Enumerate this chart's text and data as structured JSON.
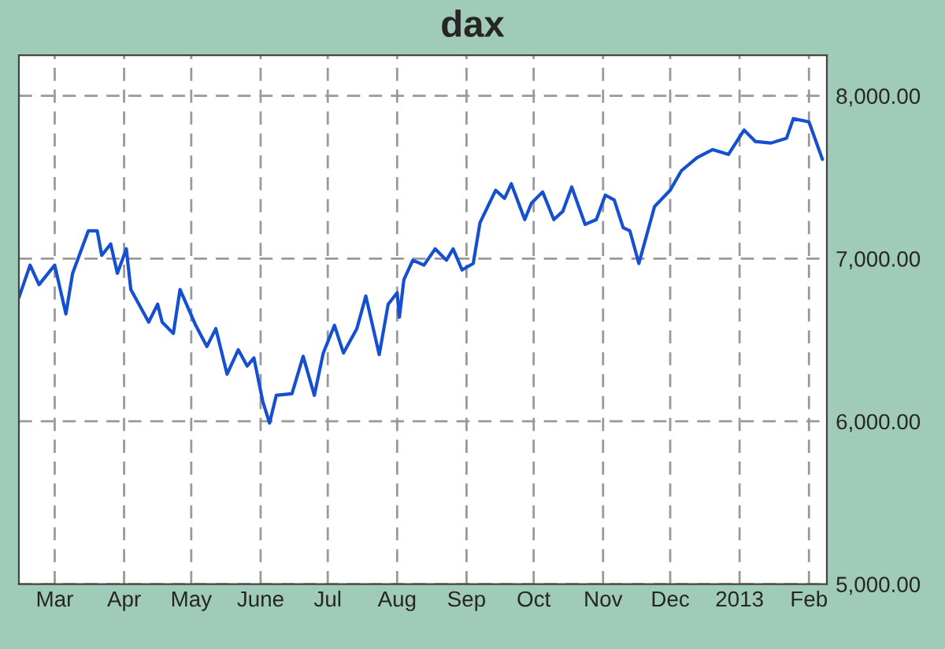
{
  "chart_data": {
    "type": "line",
    "title": "dax",
    "x": [
      "2012-02-14",
      "2012-02-19",
      "2012-02-23",
      "2012-03-01",
      "2012-03-06",
      "2012-03-09",
      "2012-03-16",
      "2012-03-20",
      "2012-03-22",
      "2012-03-26",
      "2012-03-29",
      "2012-04-02",
      "2012-04-04",
      "2012-04-12",
      "2012-04-16",
      "2012-04-18",
      "2012-04-23",
      "2012-04-26",
      "2012-05-03",
      "2012-05-08",
      "2012-05-12",
      "2012-05-17",
      "2012-05-22",
      "2012-05-26",
      "2012-05-29",
      "2012-06-02",
      "2012-06-05",
      "2012-06-08",
      "2012-06-15",
      "2012-06-20",
      "2012-06-25",
      "2012-06-29",
      "2012-07-04",
      "2012-07-08",
      "2012-07-14",
      "2012-07-18",
      "2012-07-24",
      "2012-07-28",
      "2012-08-01",
      "2012-08-02",
      "2012-08-04",
      "2012-08-08",
      "2012-08-13",
      "2012-08-18",
      "2012-08-23",
      "2012-08-26",
      "2012-08-30",
      "2012-09-04",
      "2012-09-07",
      "2012-09-14",
      "2012-09-18",
      "2012-09-21",
      "2012-09-27",
      "2012-09-30",
      "2012-10-05",
      "2012-10-10",
      "2012-10-14",
      "2012-10-18",
      "2012-10-24",
      "2012-10-29",
      "2012-11-02",
      "2012-11-06",
      "2012-11-10",
      "2012-11-13",
      "2012-11-17",
      "2012-11-24",
      "2012-12-01",
      "2012-12-06",
      "2012-12-13",
      "2012-12-20",
      "2012-12-27",
      "2013-01-03",
      "2013-01-08",
      "2013-01-15",
      "2013-01-22",
      "2013-01-25",
      "2013-02-01",
      "2013-02-07"
    ],
    "series": [
      {
        "color": "#1450d0",
        "values": [
          6760,
          6960,
          6840,
          6960,
          6660,
          6910,
          7170,
          7170,
          7020,
          7090,
          6910,
          7060,
          6810,
          6610,
          6720,
          6610,
          6540,
          6810,
          6590,
          6460,
          6570,
          6290,
          6440,
          6340,
          6390,
          6120,
          5990,
          6160,
          6170,
          6400,
          6160,
          6420,
          6590,
          6420,
          6570,
          6770,
          6410,
          6720,
          6790,
          6640,
          6870,
          6990,
          6960,
          7060,
          6990,
          7060,
          6930,
          6970,
          7220,
          7420,
          7370,
          7460,
          7240,
          7340,
          7410,
          7240,
          7290,
          7440,
          7210,
          7240,
          7390,
          7360,
          7190,
          7170,
          6970,
          7320,
          7420,
          7540,
          7620,
          7670,
          7640,
          7790,
          7720,
          7710,
          7740,
          7860,
          7840,
          7610
        ]
      }
    ],
    "xlim": [
      "2012-02-14",
      "2013-02-09"
    ],
    "xticks": [
      {
        "value": "2012-03-01",
        "label": "Mar"
      },
      {
        "value": "2012-04-01",
        "label": "Apr"
      },
      {
        "value": "2012-05-01",
        "label": "May"
      },
      {
        "value": "2012-06-01",
        "label": "June"
      },
      {
        "value": "2012-07-01",
        "label": "Jul"
      },
      {
        "value": "2012-08-01",
        "label": "Aug"
      },
      {
        "value": "2012-09-01",
        "label": "Sep"
      },
      {
        "value": "2012-10-01",
        "label": "Oct"
      },
      {
        "value": "2012-11-01",
        "label": "Nov"
      },
      {
        "value": "2012-12-01",
        "label": "Dec"
      },
      {
        "value": "2013-01-01",
        "label": "2013"
      },
      {
        "value": "2013-02-01",
        "label": "Feb"
      }
    ],
    "ylim": [
      5000,
      8250
    ],
    "yticks": [
      {
        "value": 5000,
        "label": "5,000.00"
      },
      {
        "value": 6000,
        "label": "6,000.00"
      },
      {
        "value": 7000,
        "label": "7,000.00"
      },
      {
        "value": 8000,
        "label": "8,000.00"
      }
    ],
    "grid": true,
    "line_style": "solid",
    "marker": "none"
  }
}
